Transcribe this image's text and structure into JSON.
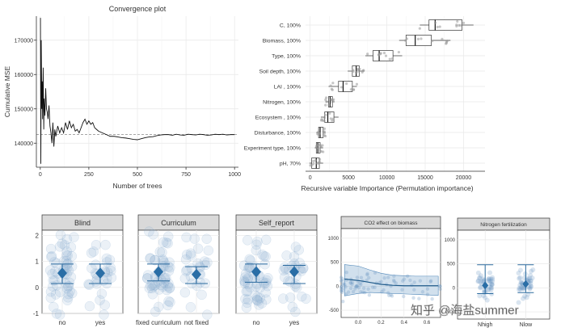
{
  "chart_data": [
    {
      "type": "line",
      "title": "Convergence plot",
      "xlabel": "Number of trees",
      "ylabel": "Cumulative MSE",
      "xlim": [
        -20,
        1020
      ],
      "ylim": [
        133000,
        177000
      ],
      "x_ticks": [
        0,
        250,
        500,
        750,
        1000
      ],
      "y_ticks": [
        140000,
        150000,
        160000,
        170000
      ],
      "x_tick_labels": [
        "0",
        "250",
        "500",
        "750",
        "1000"
      ],
      "y_tick_labels": [
        "140000",
        "150000",
        "160000",
        "170000"
      ],
      "reference_line": 142500,
      "series": [
        {
          "name": "Cumulative MSE",
          "x": [
            1,
            3,
            5,
            8,
            10,
            12,
            15,
            18,
            20,
            24,
            28,
            32,
            36,
            40,
            45,
            50,
            55,
            60,
            65,
            70,
            75,
            80,
            90,
            100,
            110,
            120,
            130,
            140,
            150,
            160,
            170,
            180,
            190,
            200,
            210,
            220,
            230,
            240,
            250,
            260,
            270,
            280,
            290,
            300,
            320,
            340,
            360,
            380,
            400,
            420,
            440,
            460,
            480,
            500,
            520,
            540,
            560,
            580,
            600,
            620,
            640,
            660,
            680,
            700,
            720,
            740,
            760,
            780,
            800,
            820,
            840,
            860,
            880,
            900,
            920,
            940,
            960,
            980,
            1000
          ],
          "y": [
            176500,
            134000,
            170000,
            150000,
            158000,
            147000,
            162000,
            144000,
            153000,
            148000,
            156000,
            150000,
            149000,
            147000,
            151000,
            145000,
            143000,
            140000,
            146000,
            139000,
            144000,
            142000,
            145000,
            143000,
            144500,
            143000,
            146000,
            144000,
            146500,
            144500,
            145500,
            143500,
            144000,
            143000,
            144500,
            146000,
            147000,
            145500,
            146500,
            145500,
            146000,
            144500,
            144000,
            143500,
            143000,
            142500,
            142000,
            142000,
            141800,
            141600,
            141500,
            141300,
            141100,
            141000,
            141300,
            141600,
            141800,
            141900,
            142200,
            142400,
            142500,
            142500,
            142300,
            142600,
            142400,
            142300,
            142600,
            142500,
            142400,
            142600,
            142500,
            142300,
            142400,
            142600,
            142500,
            142600,
            142400,
            142500,
            142500
          ]
        }
      ]
    },
    {
      "type": "box",
      "xlabel": "Recursive variable Importance (Permutation importance)",
      "xlim": [
        -600,
        22800
      ],
      "x_ticks": [
        0,
        5000,
        10000,
        15000,
        20000
      ],
      "x_tick_labels": [
        "0",
        "5000",
        "10000",
        "15000",
        "20000"
      ],
      "categories": [
        "C, 100%",
        "Biomass, 100%",
        "Type, 100%",
        "Soil depth, 100%",
        "LAI , 100%",
        "Nitrogen, 100%",
        "Ecosystem , 100%",
        "Disturbance, 100%",
        "Experiment type, 100%",
        "pH, 70%"
      ],
      "boxes": [
        {
          "q1": 15500,
          "median": 16300,
          "q3": 19800,
          "min": 14300,
          "max": 21300
        },
        {
          "q1": 12500,
          "median": 13700,
          "q3": 15800,
          "min": 11600,
          "max": 18300
        },
        {
          "q1": 8200,
          "median": 9000,
          "q3": 10800,
          "min": 7200,
          "max": 12000
        },
        {
          "q1": 5500,
          "median": 6000,
          "q3": 6400,
          "min": 4900,
          "max": 7100
        },
        {
          "q1": 3700,
          "median": 4300,
          "q3": 5500,
          "min": 2400,
          "max": 6100
        },
        {
          "q1": 2400,
          "median": 2600,
          "q3": 2900,
          "min": 2000,
          "max": 3200
        },
        {
          "q1": 1900,
          "median": 2300,
          "q3": 3100,
          "min": 1400,
          "max": 3700
        },
        {
          "q1": 1100,
          "median": 1300,
          "q3": 1700,
          "min": 800,
          "max": 2000
        },
        {
          "q1": 800,
          "median": 1000,
          "q3": 1300,
          "min": 600,
          "max": 1700
        },
        {
          "q1": 200,
          "median": 800,
          "q3": 1200,
          "min": -100,
          "max": 1700
        }
      ]
    },
    {
      "type": "scatter",
      "facets": [
        "Blind",
        "Curriculum",
        "Self_report"
      ],
      "ylim": [
        -1,
        2.2
      ],
      "y_ticks": [
        -1,
        0,
        1,
        2
      ],
      "y_tick_labels": [
        "-1",
        "0",
        "1",
        "2"
      ],
      "groups": [
        {
          "facet": "Blind",
          "categories": [
            "no",
            "yes"
          ],
          "means": [
            0.55,
            0.55
          ],
          "ci_low": [
            0.15,
            0.15
          ],
          "ci_high": [
            0.9,
            0.9
          ]
        },
        {
          "facet": "Curriculum",
          "categories": [
            "fixed curriculum",
            "not fixed"
          ],
          "means": [
            0.6,
            0.5
          ],
          "ci_low": [
            0.25,
            0.15
          ],
          "ci_high": [
            0.9,
            0.8
          ]
        },
        {
          "facet": "Self_report",
          "categories": [
            "no",
            "yes"
          ],
          "means": [
            0.6,
            0.6
          ],
          "ci_low": [
            0.2,
            0.15
          ],
          "ci_high": [
            0.9,
            0.85
          ]
        }
      ]
    },
    {
      "type": "scatter",
      "title": "CO2 effect on biomass",
      "xlim": [
        -0.15,
        0.72
      ],
      "ylim": [
        -650,
        1200
      ],
      "x_ticks": [
        0.0,
        0.2,
        0.4,
        0.6
      ],
      "x_tick_labels": [
        "0.0",
        "0.2",
        "0.4",
        "0.6"
      ],
      "y_ticks": [
        -500,
        0,
        500,
        1000
      ],
      "y_tick_labels": [
        "-500",
        "0",
        "500",
        "1000"
      ],
      "fit": {
        "x": [
          -0.12,
          0.0,
          0.1,
          0.2,
          0.3,
          0.4,
          0.5,
          0.6,
          0.7
        ],
        "y": [
          150,
          120,
          80,
          40,
          20,
          10,
          10,
          10,
          10
        ]
      },
      "band_upper": [
        450,
        420,
        340,
        270,
        230,
        220,
        210,
        210,
        210
      ],
      "band_lower": [
        -200,
        -150,
        -130,
        -140,
        -150,
        -160,
        -170,
        -180,
        -190
      ]
    },
    {
      "type": "scatter",
      "title": "Nitrogen fertilization",
      "categories": [
        "Nhigh",
        "Nlow"
      ],
      "ylim": [
        -650,
        1200
      ],
      "y_ticks": [
        -500,
        0,
        500,
        1000
      ],
      "y_tick_labels": [
        "-500",
        "0",
        "500",
        "1000"
      ],
      "means": [
        50,
        80
      ],
      "ci_low": [
        -120,
        -100
      ],
      "ci_high": [
        480,
        480
      ]
    }
  ],
  "watermark": "知乎 @海盐summer"
}
